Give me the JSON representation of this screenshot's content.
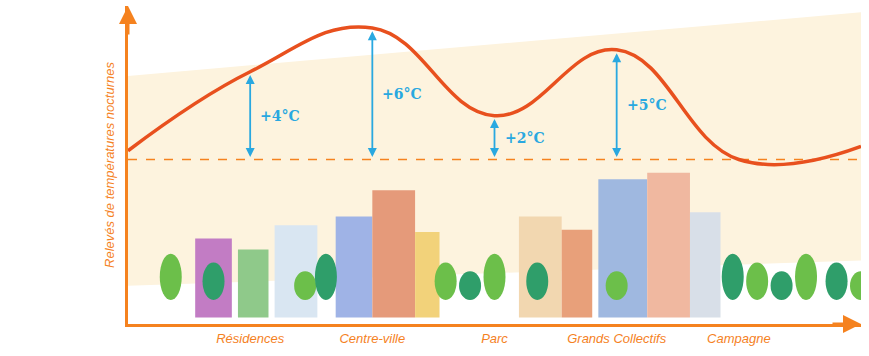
{
  "chart_data": {
    "type": "line",
    "y_label": "Relevés de températures nocturnes",
    "categories": [
      null,
      "Résidences",
      "Centre-ville",
      "Parc",
      "Grands Collectifs",
      "Campagne",
      null
    ],
    "values": [
      0.4,
      4,
      6,
      2,
      5,
      0,
      0.6
    ],
    "value_labels": [
      null,
      "+4°C",
      "+6°C",
      "+2°C",
      "+5°C",
      null,
      null
    ],
    "data_labels": true,
    "baseline": 0,
    "ylim": [
      -7.5,
      7
    ],
    "tick_labels": "x",
    "grid": false,
    "color": "#e8501e"
  }
}
